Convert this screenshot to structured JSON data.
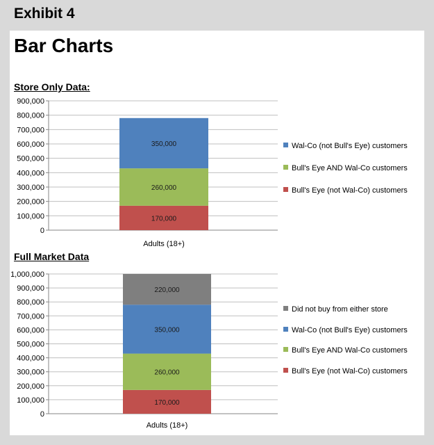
{
  "header": {
    "exhibit": "Exhibit 4"
  },
  "page": {
    "title": "Bar Charts"
  },
  "chart_data": [
    {
      "type": "bar",
      "title": "Store Only Data:",
      "categories": [
        "Adults (18+)"
      ],
      "stacked": true,
      "ylim": [
        0,
        900000
      ],
      "ytick_labels": [
        "0",
        "100,000",
        "200,000",
        "300,000",
        "400,000",
        "500,000",
        "600,000",
        "700,000",
        "800,000",
        "900,000"
      ],
      "series": [
        {
          "name": "Bull's Eye (not Wal-Co) customers",
          "values": [
            170000
          ],
          "label": "170,000",
          "color": "#c0504d"
        },
        {
          "name": "Bull's Eye AND Wal-Co customers",
          "values": [
            260000
          ],
          "label": "260,000",
          "color": "#9bbb59"
        },
        {
          "name": "Wal-Co (not Bull's Eye) customers",
          "values": [
            350000
          ],
          "label": "350,000",
          "color": "#4f81bd"
        }
      ],
      "legend": "right",
      "grid": true
    },
    {
      "type": "bar",
      "title": "Full Market Data",
      "categories": [
        "Adults (18+)"
      ],
      "stacked": true,
      "ylim": [
        0,
        1000000
      ],
      "ytick_labels": [
        "0",
        "100,000",
        "200,000",
        "300,000",
        "400,000",
        "500,000",
        "600,000",
        "700,000",
        "800,000",
        "900,000",
        "1,000,000"
      ],
      "series": [
        {
          "name": "Bull's Eye (not Wal-Co) customers",
          "values": [
            170000
          ],
          "label": "170,000",
          "color": "#c0504d"
        },
        {
          "name": "Bull's Eye AND Wal-Co customers",
          "values": [
            260000
          ],
          "label": "260,000",
          "color": "#9bbb59"
        },
        {
          "name": "Wal-Co (not Bull's Eye) customers",
          "values": [
            350000
          ],
          "label": "350,000",
          "color": "#4f81bd"
        },
        {
          "name": "Did not buy from either store",
          "values": [
            220000
          ],
          "label": "220,000",
          "color": "#7f7f7f"
        }
      ],
      "legend": "right",
      "grid": true
    }
  ]
}
